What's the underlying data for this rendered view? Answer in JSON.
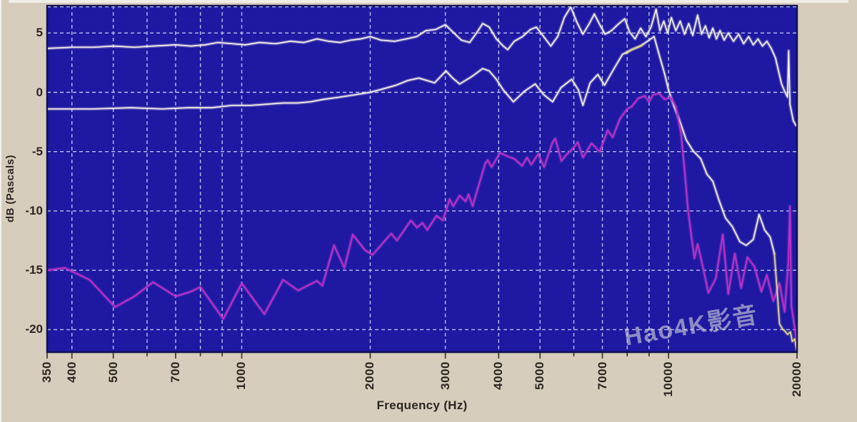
{
  "watermark": {
    "text": "Hao4K影音",
    "color": "rgba(207,210,214,0.62)"
  },
  "chart_data": {
    "type": "line",
    "title": "",
    "xlabel": "Frequency (Hz)",
    "ylabel": "dB (Pascals)",
    "x_scale": "log",
    "x_range": [
      350,
      20000
    ],
    "y_range": [
      -21.9,
      7.3
    ],
    "y_ticks": [
      5,
      0,
      -5,
      -10,
      -15,
      -20
    ],
    "x_tick_labels": [
      350,
      400,
      500,
      700,
      1000,
      2000,
      3000,
      4000,
      5000,
      7000,
      10000,
      20000
    ],
    "x_gridlines": [
      350,
      400,
      500,
      600,
      700,
      800,
      900,
      1000,
      2000,
      3000,
      4000,
      5000,
      6000,
      7000,
      8000,
      9000,
      10000,
      20000
    ],
    "grid": true,
    "legend": "none",
    "canvas_bg": "#d6cdbd",
    "plot_bg": "#1e18a2",
    "plot_border": "#12104e",
    "grid_color": "#b9c0ef",
    "tick_color": "#3a342c",
    "axis_text_color": "#2b2620",
    "series": [
      {
        "name": "white-top-curve",
        "color": "#f7f3e8",
        "width": 1.7,
        "points": [
          [
            350,
            3.7
          ],
          [
            400,
            3.8
          ],
          [
            450,
            3.8
          ],
          [
            500,
            3.9
          ],
          [
            560,
            3.8
          ],
          [
            620,
            3.9
          ],
          [
            700,
            4.0
          ],
          [
            760,
            3.9
          ],
          [
            820,
            4.0
          ],
          [
            880,
            4.2
          ],
          [
            950,
            4.1
          ],
          [
            1020,
            4.0
          ],
          [
            1100,
            4.2
          ],
          [
            1200,
            4.1
          ],
          [
            1300,
            4.3
          ],
          [
            1400,
            4.2
          ],
          [
            1500,
            4.5
          ],
          [
            1600,
            4.3
          ],
          [
            1700,
            4.2
          ],
          [
            1800,
            4.4
          ],
          [
            1900,
            4.5
          ],
          [
            2000,
            4.7
          ],
          [
            2120,
            4.4
          ],
          [
            2280,
            4.3
          ],
          [
            2430,
            4.5
          ],
          [
            2570,
            4.7
          ],
          [
            2700,
            5.2
          ],
          [
            2850,
            5.3
          ],
          [
            3000,
            5.7
          ],
          [
            3120,
            5.1
          ],
          [
            3270,
            4.4
          ],
          [
            3420,
            4.2
          ],
          [
            3550,
            5.0
          ],
          [
            3670,
            5.8
          ],
          [
            3800,
            5.5
          ],
          [
            3950,
            4.5
          ],
          [
            4100,
            3.9
          ],
          [
            4200,
            3.6
          ],
          [
            4350,
            4.3
          ],
          [
            4550,
            4.7
          ],
          [
            4750,
            5.3
          ],
          [
            4900,
            5.5
          ],
          [
            5100,
            4.7
          ],
          [
            5300,
            3.9
          ],
          [
            5500,
            4.7
          ],
          [
            5700,
            6.3
          ],
          [
            5900,
            7.2
          ],
          [
            6100,
            5.9
          ],
          [
            6300,
            4.9
          ],
          [
            6500,
            5.7
          ],
          [
            6700,
            6.6
          ],
          [
            6900,
            5.7
          ],
          [
            7100,
            4.9
          ],
          [
            7350,
            5.2
          ],
          [
            7600,
            5.7
          ],
          [
            7900,
            6.2
          ],
          [
            8100,
            5.1
          ],
          [
            8350,
            4.5
          ],
          [
            8600,
            5.4
          ],
          [
            8850,
            4.7
          ],
          [
            9100,
            5.5
          ],
          [
            9350,
            7.0
          ],
          [
            9550,
            5.2
          ],
          [
            9750,
            6.0
          ],
          [
            9950,
            5.0
          ],
          [
            10150,
            6.3
          ],
          [
            10400,
            5.2
          ],
          [
            10650,
            6.0
          ],
          [
            10900,
            4.9
          ],
          [
            11150,
            5.8
          ],
          [
            11400,
            4.8
          ],
          [
            11700,
            6.5
          ],
          [
            11950,
            4.9
          ],
          [
            12200,
            5.6
          ],
          [
            12450,
            4.6
          ],
          [
            12700,
            5.4
          ],
          [
            12950,
            4.5
          ],
          [
            13200,
            5.2
          ],
          [
            13500,
            4.4
          ],
          [
            13800,
            5.0
          ],
          [
            14200,
            4.3
          ],
          [
            14600,
            4.9
          ],
          [
            15000,
            4.1
          ],
          [
            15400,
            4.7
          ],
          [
            15800,
            4.0
          ],
          [
            16200,
            4.5
          ],
          [
            16600,
            3.9
          ],
          [
            17000,
            4.3
          ],
          [
            17400,
            3.7
          ],
          [
            17800,
            2.9
          ],
          [
            18100,
            1.8
          ],
          [
            18400,
            0.7
          ],
          [
            18700,
            0.1
          ],
          [
            19000,
            -0.4
          ],
          [
            19120,
            3.5
          ],
          [
            19250,
            -1.0
          ],
          [
            19600,
            -2.4
          ],
          [
            19900,
            -2.8
          ]
        ]
      },
      {
        "name": "white-middle-curve",
        "color": "#f7f3e8",
        "width": 1.7,
        "points": [
          [
            350,
            -1.4
          ],
          [
            450,
            -1.4
          ],
          [
            550,
            -1.3
          ],
          [
            650,
            -1.4
          ],
          [
            750,
            -1.3
          ],
          [
            850,
            -1.3
          ],
          [
            950,
            -1.1
          ],
          [
            1050,
            -1.1
          ],
          [
            1150,
            -1.0
          ],
          [
            1250,
            -0.9
          ],
          [
            1350,
            -0.9
          ],
          [
            1450,
            -0.8
          ],
          [
            1550,
            -0.6
          ],
          [
            1700,
            -0.4
          ],
          [
            1850,
            -0.2
          ],
          [
            2000,
            0.0
          ],
          [
            2150,
            0.3
          ],
          [
            2300,
            0.6
          ],
          [
            2450,
            1.0
          ],
          [
            2600,
            1.2
          ],
          [
            2830,
            0.8
          ],
          [
            3010,
            1.8
          ],
          [
            3120,
            1.2
          ],
          [
            3240,
            0.7
          ],
          [
            3450,
            1.3
          ],
          [
            3670,
            2.0
          ],
          [
            3800,
            1.8
          ],
          [
            3950,
            1.1
          ],
          [
            4100,
            0.2
          ],
          [
            4330,
            -0.8
          ],
          [
            4600,
            0.1
          ],
          [
            4870,
            0.7
          ],
          [
            5100,
            -0.2
          ],
          [
            5350,
            -0.8
          ],
          [
            5600,
            0.4
          ],
          [
            5930,
            1.1
          ],
          [
            6150,
            0.2
          ],
          [
            6300,
            -1.1
          ],
          [
            6550,
            0.8
          ],
          [
            6830,
            1.5
          ],
          [
            7080,
            0.6
          ],
          [
            7400,
            1.8
          ],
          [
            7800,
            3.2
          ],
          [
            8200,
            3.6
          ],
          [
            8600,
            3.9
          ],
          [
            9000,
            4.4
          ],
          [
            9250,
            4.7
          ],
          [
            9500,
            3.2
          ],
          [
            9800,
            1.5
          ],
          [
            10000,
            0.2
          ],
          [
            10300,
            -1.2
          ],
          [
            10600,
            -2.3
          ],
          [
            11000,
            -4.0
          ],
          [
            11400,
            -4.9
          ],
          [
            11900,
            -5.6
          ],
          [
            12300,
            -6.9
          ],
          [
            12700,
            -7.5
          ],
          [
            13100,
            -9.0
          ],
          [
            13600,
            -10.6
          ],
          [
            14100,
            -11.3
          ],
          [
            14700,
            -12.6
          ],
          [
            15200,
            -12.9
          ],
          [
            15800,
            -12.4
          ],
          [
            16300,
            -10.3
          ],
          [
            16800,
            -11.6
          ],
          [
            17300,
            -12.2
          ],
          [
            17700,
            -13.6
          ]
        ]
      },
      {
        "name": "magenta-curve",
        "color": "#c32ec6",
        "width": 2.0,
        "halo": "#a94fd8",
        "points": [
          [
            350,
            -15.0
          ],
          [
            385,
            -14.8
          ],
          [
            440,
            -15.8
          ],
          [
            505,
            -18.1
          ],
          [
            560,
            -17.2
          ],
          [
            620,
            -16.0
          ],
          [
            700,
            -17.2
          ],
          [
            760,
            -16.8
          ],
          [
            800,
            -16.4
          ],
          [
            905,
            -19.1
          ],
          [
            1000,
            -16.1
          ],
          [
            1130,
            -18.7
          ],
          [
            1250,
            -15.8
          ],
          [
            1355,
            -16.7
          ],
          [
            1500,
            -15.9
          ],
          [
            1545,
            -16.3
          ],
          [
            1645,
            -12.9
          ],
          [
            1740,
            -14.8
          ],
          [
            1820,
            -12.0
          ],
          [
            1945,
            -13.3
          ],
          [
            2025,
            -13.7
          ],
          [
            2240,
            -11.9
          ],
          [
            2310,
            -12.5
          ],
          [
            2490,
            -10.8
          ],
          [
            2575,
            -11.4
          ],
          [
            2650,
            -11.0
          ],
          [
            2720,
            -11.6
          ],
          [
            2860,
            -10.4
          ],
          [
            2960,
            -10.8
          ],
          [
            3070,
            -9.0
          ],
          [
            3130,
            -9.6
          ],
          [
            3240,
            -8.7
          ],
          [
            3345,
            -9.2
          ],
          [
            3400,
            -8.6
          ],
          [
            3475,
            -9.6
          ],
          [
            3520,
            -8.9
          ],
          [
            3720,
            -6.0
          ],
          [
            3770,
            -5.7
          ],
          [
            3850,
            -6.3
          ],
          [
            4030,
            -5.1
          ],
          [
            4200,
            -5.4
          ],
          [
            4350,
            -5.6
          ],
          [
            4540,
            -6.2
          ],
          [
            4660,
            -5.5
          ],
          [
            4770,
            -6.1
          ],
          [
            4950,
            -5.2
          ],
          [
            5110,
            -6.3
          ],
          [
            5350,
            -4.2
          ],
          [
            5430,
            -3.9
          ],
          [
            5610,
            -5.8
          ],
          [
            5750,
            -5.3
          ],
          [
            5950,
            -4.8
          ],
          [
            6130,
            -4.2
          ],
          [
            6300,
            -5.5
          ],
          [
            6600,
            -4.3
          ],
          [
            6900,
            -5.0
          ],
          [
            7200,
            -3.2
          ],
          [
            7400,
            -3.8
          ],
          [
            7700,
            -2.2
          ],
          [
            8000,
            -1.4
          ],
          [
            8200,
            -1.2
          ],
          [
            8500,
            -0.5
          ],
          [
            8800,
            -0.3
          ],
          [
            9000,
            -0.8
          ],
          [
            9200,
            -0.2
          ],
          [
            9500,
            -0.1
          ],
          [
            9800,
            -0.6
          ],
          [
            10100,
            -0.4
          ],
          [
            10400,
            -1.2
          ],
          [
            10700,
            -3.5
          ],
          [
            10900,
            -6.5
          ],
          [
            11100,
            -9.8
          ],
          [
            11300,
            -12.0
          ],
          [
            11500,
            -14.0
          ],
          [
            11700,
            -12.8
          ],
          [
            12000,
            -14.5
          ],
          [
            12400,
            -16.9
          ],
          [
            12900,
            -15.7
          ],
          [
            13400,
            -12.0
          ],
          [
            13800,
            -17.0
          ],
          [
            14300,
            -13.6
          ],
          [
            14800,
            -16.5
          ],
          [
            15300,
            -13.9
          ],
          [
            15900,
            -14.7
          ],
          [
            16500,
            -16.8
          ],
          [
            17000,
            -15.4
          ],
          [
            17600,
            -17.6
          ],
          [
            18200,
            -16.1
          ],
          [
            18700,
            -18.5
          ],
          [
            19100,
            -14.2
          ],
          [
            19250,
            -9.6
          ],
          [
            19400,
            -18.0
          ],
          [
            19700,
            -19.6
          ],
          [
            20000,
            -21.2
          ]
        ]
      },
      {
        "name": "overlap-tint-crossing",
        "color": "#e6d98e",
        "width": 1.7,
        "points": [
          [
            7950,
            3.3
          ],
          [
            8200,
            3.6
          ],
          [
            8450,
            3.8
          ],
          [
            8700,
            4.0
          ]
        ]
      },
      {
        "name": "overlap-tint-tail",
        "color": "#e6d98e",
        "width": 1.7,
        "points": [
          [
            17700,
            -13.6
          ],
          [
            17950,
            -16.5
          ],
          [
            18200,
            -19.5
          ],
          [
            18450,
            -19.9
          ],
          [
            18700,
            -20.1
          ],
          [
            19000,
            -20.4
          ],
          [
            19300,
            -20.2
          ],
          [
            19500,
            -21.0
          ],
          [
            19750,
            -20.8
          ],
          [
            20000,
            -21.8
          ]
        ]
      }
    ]
  }
}
